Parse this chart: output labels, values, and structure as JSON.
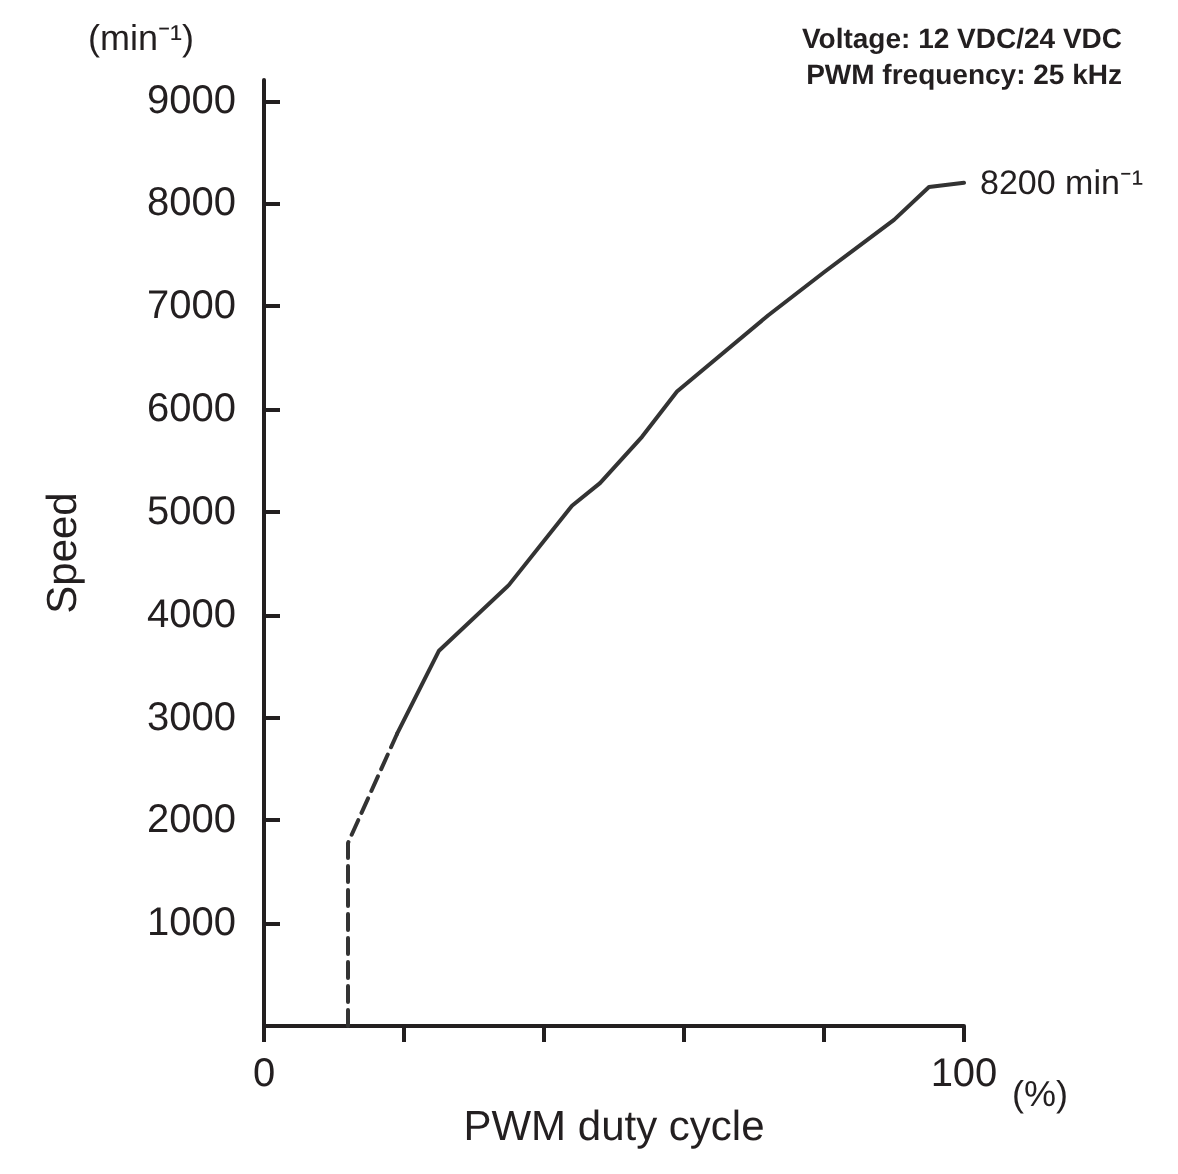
{
  "chart_data": {
    "type": "line",
    "xlabel": "PWM duty cycle",
    "ylabel": "Speed",
    "xlim": [
      0,
      100
    ],
    "xticks": [
      0,
      {
        "value": 20,
        "label": null
      },
      {
        "value": 40,
        "label": null
      },
      {
        "value": 60,
        "label": null
      },
      {
        "value": 80,
        "label": null
      },
      100
    ],
    "ylim": [
      0,
      9200
    ],
    "yticks": [
      1000,
      2000,
      3000,
      4000,
      5000,
      6000,
      7000,
      8000,
      9000
    ],
    "grid": false,
    "marker": "none",
    "series": [
      {
        "color": "#333333",
        "line_style": "dashed",
        "x": [
          12,
          12,
          19
        ],
        "values": [
          0,
          1780,
          2840
        ]
      },
      {
        "color": "#333333",
        "line_style": "solid",
        "x": [
          19,
          25,
          35,
          44,
          48,
          54,
          59,
          72,
          80,
          90,
          95,
          100
        ],
        "values": [
          2840,
          3650,
          4290,
          5060,
          5280,
          5730,
          6170,
          6910,
          7330,
          7840,
          8160,
          8200
        ]
      }
    ],
    "annotations": [
      "(min⁻¹)",
      "Voltage: 12 VDC/24 VDC",
      "PWM frequency: 25 kHz",
      "(%)",
      {
        "text": "8200 min⁻¹",
        "x": 100,
        "y": 8200
      }
    ]
  }
}
